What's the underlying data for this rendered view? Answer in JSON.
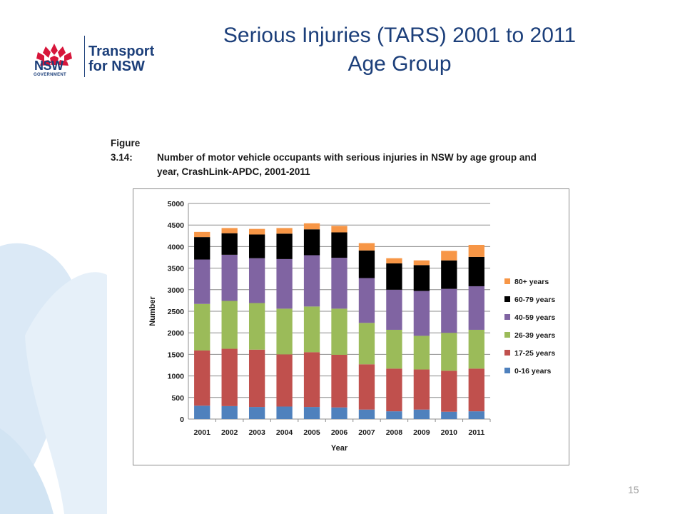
{
  "slide": {
    "title_line1": "Serious Injuries (TARS) 2001 to 2011",
    "title_line2": "Age Group",
    "page_number": "15"
  },
  "logo": {
    "line1": "Transport",
    "line2": "for NSW",
    "nsw": "NSW",
    "government": "GOVERNMENT"
  },
  "figure": {
    "label": "Figure 3.14:",
    "caption_line1": "Number of motor vehicle occupants with serious injuries in NSW by age group and",
    "caption_line2": "year, CrashLink-APDC, 2001-2011"
  },
  "colors": {
    "title": "#1c3f7a",
    "background_art": "#dbe9f6"
  },
  "chart_data": {
    "type": "bar",
    "stacked": true,
    "categories": [
      "2001",
      "2002",
      "2003",
      "2004",
      "2005",
      "2006",
      "2007",
      "2008",
      "2009",
      "2010",
      "2011"
    ],
    "xlabel": "Year",
    "ylabel": "Number",
    "ylim": [
      0,
      5000
    ],
    "yticks": [
      "0",
      "500",
      "1000",
      "1500",
      "2000",
      "2500",
      "3000",
      "3500",
      "4000",
      "4500",
      "5000"
    ],
    "grid": true,
    "legend_position": "right",
    "series": [
      {
        "name": "0-16 years",
        "color": "#4f81bd",
        "values": [
          310,
          300,
          280,
          290,
          280,
          270,
          220,
          180,
          220,
          170,
          180
        ]
      },
      {
        "name": "17-25 years",
        "color": "#c0504d",
        "values": [
          1280,
          1330,
          1330,
          1210,
          1270,
          1220,
          1050,
          990,
          930,
          950,
          990
        ]
      },
      {
        "name": "26-39 years",
        "color": "#9bbb59",
        "values": [
          1080,
          1110,
          1080,
          1060,
          1060,
          1070,
          960,
          900,
          780,
          880,
          900
        ]
      },
      {
        "name": "40-59 years",
        "color": "#8064a2",
        "values": [
          1030,
          1070,
          1040,
          1150,
          1190,
          1180,
          1040,
          930,
          1040,
          1020,
          1010
        ]
      },
      {
        "name": "60-79 years",
        "color": "#000000",
        "values": [
          520,
          500,
          550,
          590,
          600,
          590,
          640,
          610,
          600,
          660,
          680
        ]
      },
      {
        "name": "80+ years",
        "color": "#f79646",
        "values": [
          120,
          120,
          130,
          130,
          140,
          150,
          170,
          120,
          110,
          220,
          280
        ]
      }
    ]
  }
}
